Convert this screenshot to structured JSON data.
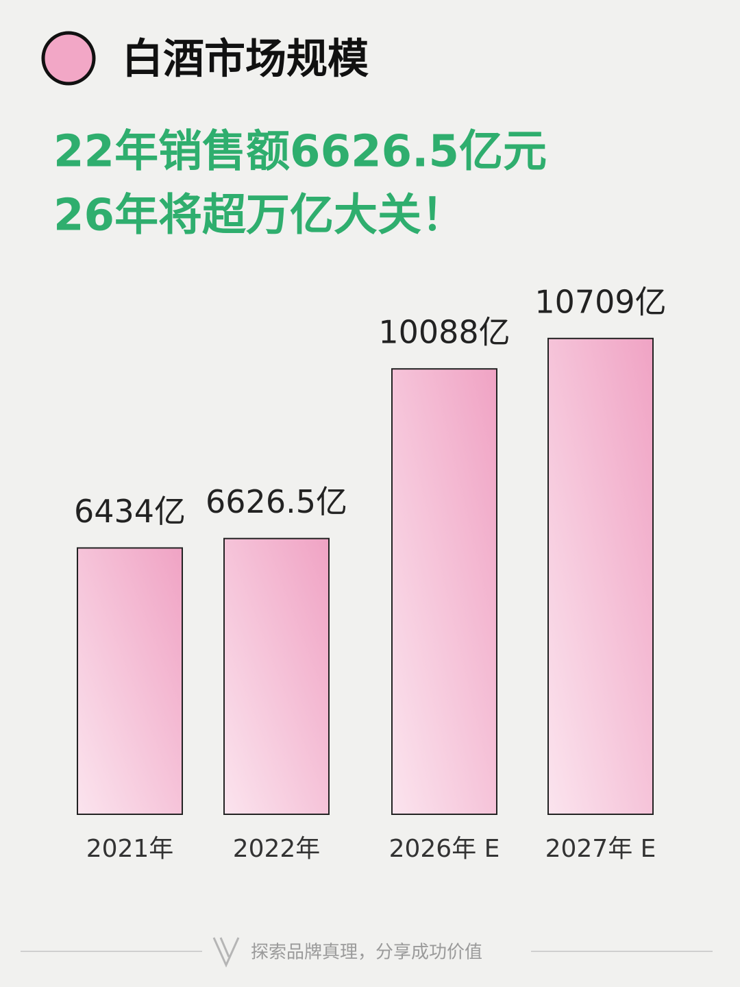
{
  "chart_data": {
    "type": "bar",
    "title": "白酒市场规模",
    "subtitle": [
      "22年销售额6626.5亿元",
      "26年将超万亿大关！"
    ],
    "categories": [
      "2021年",
      "2022年",
      "2026年 E",
      "2027年 E"
    ],
    "values": [
      6434,
      6626.5,
      10088,
      10709
    ],
    "value_labels": [
      "6434亿",
      "6626.5亿",
      "10088亿",
      "10709亿"
    ],
    "color": "#f0a3c4",
    "ylim": [
      1000,
      11000
    ]
  },
  "footer": "探索品牌真理，分享成功价值"
}
